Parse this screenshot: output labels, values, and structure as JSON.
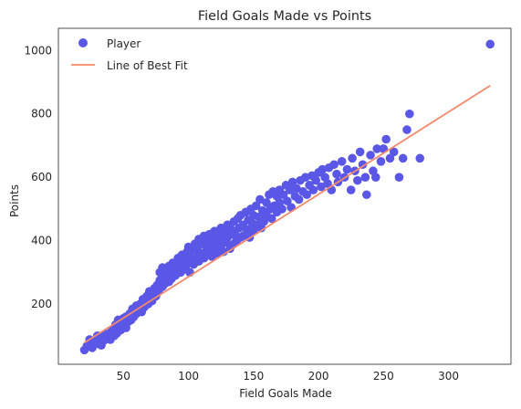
{
  "chart_data": {
    "type": "scatter",
    "title": "Field Goals Made vs Points",
    "xlabel": "Field Goals Made",
    "ylabel": "Points",
    "xlim": [
      0,
      348
    ],
    "ylim": [
      10,
      1070
    ],
    "xticks": [
      50,
      100,
      150,
      200,
      250,
      300
    ],
    "yticks": [
      200,
      400,
      600,
      800,
      1000
    ],
    "grid": false,
    "legend_position": "top-left",
    "colors": {
      "scatter": "#5b57e6",
      "fit": "#f4896b",
      "axis": "#262626"
    },
    "series": [
      {
        "name": "Player",
        "kind": "scatter",
        "points": [
          [
            20,
            55
          ],
          [
            22,
            68
          ],
          [
            24,
            88
          ],
          [
            26,
            62
          ],
          [
            28,
            80
          ],
          [
            30,
            75
          ],
          [
            30,
            100
          ],
          [
            32,
            92
          ],
          [
            33,
            70
          ],
          [
            35,
            85
          ],
          [
            36,
            105
          ],
          [
            38,
            95
          ],
          [
            40,
            88
          ],
          [
            40,
            110
          ],
          [
            42,
            120
          ],
          [
            43,
            100
          ],
          [
            44,
            135
          ],
          [
            45,
            108
          ],
          [
            46,
            150
          ],
          [
            48,
            118
          ],
          [
            48,
            140
          ],
          [
            50,
            130
          ],
          [
            50,
            155
          ],
          [
            52,
            125
          ],
          [
            52,
            160
          ],
          [
            54,
            145
          ],
          [
            55,
            170
          ],
          [
            56,
            150
          ],
          [
            57,
            185
          ],
          [
            58,
            160
          ],
          [
            60,
            195
          ],
          [
            60,
            170
          ],
          [
            62,
            180
          ],
          [
            63,
            200
          ],
          [
            64,
            175
          ],
          [
            65,
            215
          ],
          [
            66,
            190
          ],
          [
            67,
            205
          ],
          [
            68,
            225
          ],
          [
            69,
            200
          ],
          [
            70,
            215
          ],
          [
            70,
            240
          ],
          [
            72,
            210
          ],
          [
            72,
            235
          ],
          [
            74,
            250
          ],
          [
            75,
            225
          ],
          [
            76,
            260
          ],
          [
            77,
            240
          ],
          [
            78,
            275
          ],
          [
            78,
            300
          ],
          [
            80,
            255
          ],
          [
            80,
            315
          ],
          [
            81,
            280
          ],
          [
            82,
            265
          ],
          [
            83,
            300
          ],
          [
            84,
            290
          ],
          [
            85,
            270
          ],
          [
            85,
            320
          ],
          [
            86,
            305
          ],
          [
            87,
            280
          ],
          [
            88,
            330
          ],
          [
            88,
            300
          ],
          [
            90,
            290
          ],
          [
            90,
            325
          ],
          [
            92,
            310
          ],
          [
            92,
            345
          ],
          [
            94,
            300
          ],
          [
            94,
            330
          ],
          [
            95,
            355
          ],
          [
            96,
            320
          ],
          [
            97,
            340
          ],
          [
            98,
            310
          ],
          [
            99,
            365
          ],
          [
            100,
            330
          ],
          [
            100,
            380
          ],
          [
            101,
            300
          ],
          [
            102,
            350
          ],
          [
            103,
            370
          ],
          [
            104,
            325
          ],
          [
            105,
            390
          ],
          [
            106,
            345
          ],
          [
            107,
            370
          ],
          [
            108,
            405
          ],
          [
            108,
            335
          ],
          [
            110,
            360
          ],
          [
            110,
            390
          ],
          [
            112,
            345
          ],
          [
            112,
            415
          ],
          [
            114,
            375
          ],
          [
            114,
            395
          ],
          [
            115,
            360
          ],
          [
            116,
            420
          ],
          [
            117,
            385
          ],
          [
            118,
            350
          ],
          [
            119,
            405
          ],
          [
            120,
            375
          ],
          [
            120,
            430
          ],
          [
            122,
            395
          ],
          [
            122,
            360
          ],
          [
            124,
            415
          ],
          [
            125,
            440
          ],
          [
            125,
            380
          ],
          [
            126,
            400
          ],
          [
            127,
            365
          ],
          [
            128,
            430
          ],
          [
            129,
            395
          ],
          [
            130,
            450
          ],
          [
            130,
            410
          ],
          [
            132,
            375
          ],
          [
            132,
            440
          ],
          [
            134,
            420
          ],
          [
            135,
            460
          ],
          [
            135,
            390
          ],
          [
            136,
            430
          ],
          [
            137,
            400
          ],
          [
            138,
            470
          ],
          [
            139,
            440
          ],
          [
            140,
            410
          ],
          [
            140,
            480
          ],
          [
            142,
            450
          ],
          [
            142,
            415
          ],
          [
            144,
            490
          ],
          [
            145,
            435
          ],
          [
            146,
            465
          ],
          [
            147,
            410
          ],
          [
            148,
            500
          ],
          [
            149,
            455
          ],
          [
            150,
            430
          ],
          [
            150,
            480
          ],
          [
            152,
            510
          ],
          [
            153,
            450
          ],
          [
            154,
            475
          ],
          [
            155,
            530
          ],
          [
            156,
            440
          ],
          [
            157,
            495
          ],
          [
            158,
            460
          ],
          [
            160,
            520
          ],
          [
            160,
            480
          ],
          [
            162,
            545
          ],
          [
            163,
            500
          ],
          [
            164,
            470
          ],
          [
            165,
            555
          ],
          [
            166,
            510
          ],
          [
            168,
            490
          ],
          [
            168,
            540
          ],
          [
            170,
            520
          ],
          [
            170,
            560
          ],
          [
            172,
            500
          ],
          [
            173,
            545
          ],
          [
            175,
            575
          ],
          [
            176,
            525
          ],
          [
            178,
            560
          ],
          [
            179,
            505
          ],
          [
            180,
            585
          ],
          [
            182,
            540
          ],
          [
            183,
            565
          ],
          [
            185,
            530
          ],
          [
            186,
            590
          ],
          [
            188,
            555
          ],
          [
            190,
            600
          ],
          [
            191,
            545
          ],
          [
            193,
            575
          ],
          [
            195,
            605
          ],
          [
            196,
            560
          ],
          [
            198,
            590
          ],
          [
            200,
            615
          ],
          [
            202,
            570
          ],
          [
            203,
            625
          ],
          [
            205,
            600
          ],
          [
            207,
            580
          ],
          [
            208,
            630
          ],
          [
            210,
            560
          ],
          [
            212,
            640
          ],
          [
            214,
            610
          ],
          [
            215,
            585
          ],
          [
            218,
            650
          ],
          [
            220,
            600
          ],
          [
            222,
            625
          ],
          [
            225,
            560
          ],
          [
            226,
            660
          ],
          [
            228,
            620
          ],
          [
            230,
            590
          ],
          [
            232,
            680
          ],
          [
            234,
            640
          ],
          [
            236,
            600
          ],
          [
            237,
            545
          ],
          [
            240,
            670
          ],
          [
            242,
            620
          ],
          [
            244,
            600
          ],
          [
            245,
            690
          ],
          [
            248,
            650
          ],
          [
            250,
            690
          ],
          [
            252,
            720
          ],
          [
            255,
            660
          ],
          [
            258,
            680
          ],
          [
            262,
            600
          ],
          [
            265,
            660
          ],
          [
            268,
            750
          ],
          [
            270,
            800
          ],
          [
            278,
            660
          ],
          [
            332,
            1020
          ]
        ]
      },
      {
        "name": "Line of Best Fit",
        "kind": "line",
        "slope": 2.6,
        "intercept": 26,
        "x_range": [
          20,
          332
        ]
      }
    ]
  }
}
